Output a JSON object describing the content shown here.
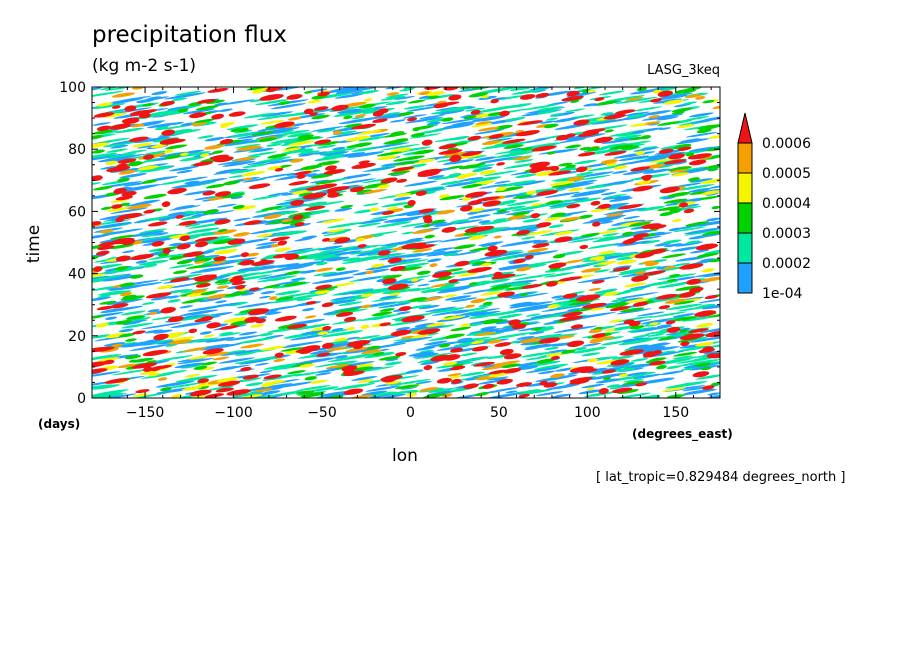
{
  "chart_data": {
    "type": "heatmap",
    "title": "precipitation flux",
    "units": "(kg m-2 s-1)",
    "model": "LASG_3keq",
    "xlabel": "lon",
    "xunits": "(degrees_east)",
    "ylabel": "time",
    "yunits": "(days)",
    "xlim": [
      -180,
      175
    ],
    "ylim": [
      0,
      100
    ],
    "xticks": [
      -150,
      -100,
      -50,
      0,
      50,
      100,
      150
    ],
    "yticks": [
      0,
      20,
      40,
      60,
      80,
      100
    ],
    "footer": "[ lat_tropic=0.829484 degrees_north ]",
    "colorbar": {
      "levels": [
        "1e-04",
        "0.0002",
        "0.0003",
        "0.0004",
        "0.0005",
        "0.0006"
      ],
      "colors": [
        "#1ea0ff",
        "#00e8a0",
        "#00d200",
        "#f5f500",
        "#f5a000",
        "#f01414"
      ]
    },
    "grid": false
  }
}
